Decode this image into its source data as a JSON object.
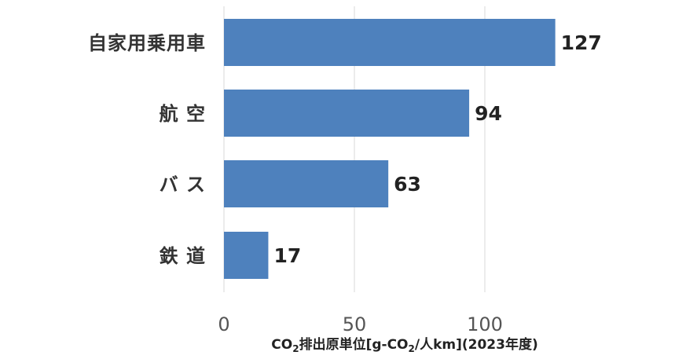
{
  "chart_data": {
    "type": "bar",
    "orientation": "horizontal",
    "categories": [
      "自家用乗用車",
      "航 空",
      "バ ス",
      "鉄 道"
    ],
    "values": [
      127,
      94,
      63,
      17
    ],
    "title": "",
    "xlabel": "CO2排出原単位[g-CO2/人km](2023年度)",
    "xlabel_parts": [
      {
        "text": "CO",
        "sub": false
      },
      {
        "text": "2",
        "sub": true
      },
      {
        "text": "排出原単位[g-CO",
        "sub": false
      },
      {
        "text": "2",
        "sub": true
      },
      {
        "text": "/人km](2023年度)",
        "sub": false
      }
    ],
    "ylabel": "",
    "xlim": [
      0,
      130
    ],
    "xticks": [
      0,
      50,
      100
    ],
    "grid": true,
    "legend": "none",
    "colors": {
      "bar": "#4e81bd",
      "grid": "#d9d9d9"
    }
  }
}
